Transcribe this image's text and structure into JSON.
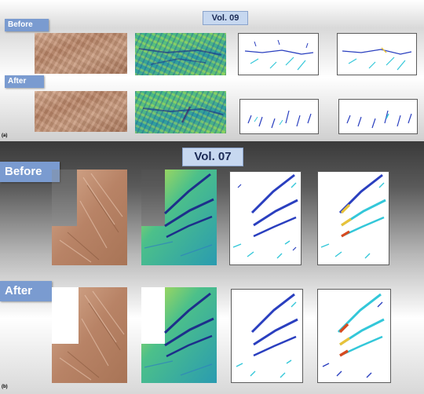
{
  "panel_a": {
    "id": "(a)",
    "volume": "Vol. 09",
    "before_label": "Before",
    "after_label": "After"
  },
  "panel_b": {
    "id": "(b)",
    "volume": "Vol. 07",
    "before_label": "Before",
    "after_label": "After"
  },
  "colors": {
    "label_bg": "#7a9bd0",
    "volume_bg": "#c7d8f0",
    "copper": "#b98466",
    "curvature_green": "#3fb38a",
    "crack_blue": "#2a3fbf",
    "crack_cyan": "#33c7d9",
    "crack_highlight": "#e8c23a",
    "crack_hot": "#d64a1f"
  }
}
